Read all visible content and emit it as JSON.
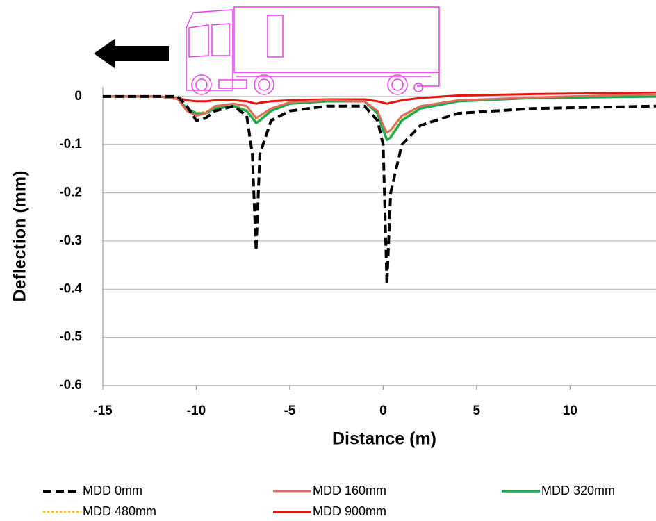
{
  "chart_data": {
    "type": "line",
    "xlabel": "Distance (m)",
    "ylabel": "Deflection (mm)",
    "x": [
      -15,
      -12,
      -11,
      -10.5,
      -10,
      -9.5,
      -9,
      -8,
      -7.3,
      -7,
      -6.8,
      -6.6,
      -6,
      -5,
      -3,
      -1,
      -0.3,
      0,
      0.2,
      0.4,
      1,
      2,
      4,
      8,
      14.6
    ],
    "series": [
      {
        "name": "MDD 0mm",
        "color": "#000000",
        "dash": "dashed",
        "width": 4,
        "values": [
          0,
          0,
          0,
          -0.02,
          -0.05,
          -0.045,
          -0.03,
          -0.02,
          -0.04,
          -0.12,
          -0.32,
          -0.12,
          -0.05,
          -0.03,
          -0.02,
          -0.02,
          -0.05,
          -0.1,
          -0.39,
          -0.2,
          -0.1,
          -0.06,
          -0.035,
          -0.025,
          -0.02
        ]
      },
      {
        "name": "MDD 160mm",
        "color": "#e06b5a",
        "dash": "solid",
        "width": 3,
        "values": [
          0,
          0,
          -0.005,
          -0.03,
          -0.04,
          -0.035,
          -0.02,
          -0.015,
          -0.02,
          -0.035,
          -0.045,
          -0.04,
          -0.025,
          -0.012,
          -0.008,
          -0.01,
          -0.03,
          -0.06,
          -0.075,
          -0.07,
          -0.04,
          -0.02,
          -0.008,
          -0.002,
          0.005
        ]
      },
      {
        "name": "MDD 320mm",
        "color": "#1aac4f",
        "dash": "solid",
        "width": 3.5,
        "values": [
          0,
          0,
          -0.005,
          -0.025,
          -0.035,
          -0.035,
          -0.025,
          -0.02,
          -0.03,
          -0.045,
          -0.055,
          -0.05,
          -0.03,
          -0.015,
          -0.01,
          -0.01,
          -0.035,
          -0.07,
          -0.09,
          -0.085,
          -0.05,
          -0.025,
          -0.01,
          -0.003,
          0
        ]
      },
      {
        "name": "MDD 480mm",
        "color": "#f2c21b",
        "dash": "dotted",
        "width": 2.5,
        "values": [
          0,
          0,
          -0.005,
          -0.025,
          -0.033,
          -0.032,
          -0.022,
          -0.018,
          -0.028,
          -0.042,
          -0.05,
          -0.047,
          -0.028,
          -0.014,
          -0.01,
          -0.01,
          -0.033,
          -0.065,
          -0.085,
          -0.08,
          -0.045,
          -0.022,
          -0.008,
          -0.002,
          0
        ]
      },
      {
        "name": "MDD 900mm",
        "color": "#e8150f",
        "dash": "solid",
        "width": 3,
        "values": [
          0,
          0,
          -0.003,
          -0.008,
          -0.01,
          -0.01,
          -0.008,
          -0.008,
          -0.01,
          -0.013,
          -0.015,
          -0.013,
          -0.01,
          -0.008,
          -0.006,
          -0.006,
          -0.01,
          -0.013,
          -0.015,
          -0.013,
          -0.008,
          -0.003,
          0.002,
          0.005,
          0.008
        ]
      }
    ],
    "xlim": [
      -15,
      14.6
    ],
    "xticks": [
      -15,
      -10,
      -5,
      0,
      5,
      10
    ],
    "ylim": [
      -0.6,
      0.02
    ],
    "yticks": [
      -0.6,
      -0.5,
      -0.4,
      -0.3,
      -0.2,
      -0.1,
      0
    ],
    "grid": true
  }
}
